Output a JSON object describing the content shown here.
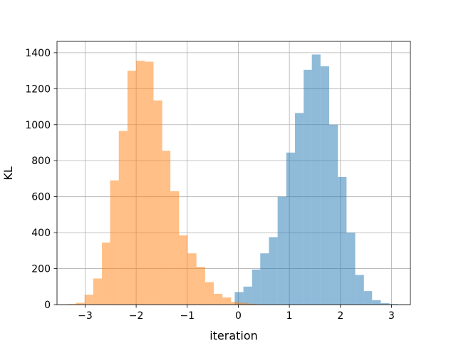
{
  "chart_data": {
    "type": "bar",
    "title": "",
    "xlabel": "iteration",
    "ylabel": "KL",
    "xlim": [
      -3.55,
      3.37
    ],
    "ylim": [
      0,
      1463
    ],
    "xticks": [
      -3,
      -2,
      -1,
      0,
      1,
      2,
      3
    ],
    "xtick_labels": [
      "−3",
      "−2",
      "−1",
      "0",
      "1",
      "2",
      "3"
    ],
    "yticks": [
      0,
      200,
      400,
      600,
      800,
      1000,
      1200,
      1400
    ],
    "ytick_labels": [
      "0",
      "200",
      "400",
      "600",
      "800",
      "1000",
      "1200",
      "1400"
    ],
    "grid": true,
    "legend": "none",
    "series": [
      {
        "color": "#1f77b4",
        "alpha": 0.5,
        "bin_edges": [
          -0.07,
          0.1,
          0.27,
          0.43,
          0.6,
          0.77,
          0.94,
          1.11,
          1.28,
          1.44,
          1.61,
          1.78,
          1.95,
          2.12,
          2.29,
          2.46,
          2.62,
          2.79,
          2.96,
          3.13
        ],
        "counts": [
          70,
          100,
          195,
          285,
          375,
          600,
          845,
          1065,
          1305,
          1390,
          1325,
          1000,
          710,
          400,
          165,
          75,
          25,
          8,
          3
        ]
      },
      {
        "color": "#ff7f0e",
        "alpha": 0.5,
        "bin_edges": [
          -3.35,
          -3.18,
          -3.01,
          -2.84,
          -2.67,
          -2.51,
          -2.34,
          -2.17,
          -2.0,
          -1.83,
          -1.66,
          -1.49,
          -1.33,
          -1.16,
          -0.99,
          -0.82,
          -0.65,
          -0.48,
          -0.31,
          -0.14,
          0.02,
          0.19,
          0.36,
          0.53,
          0.7
        ],
        "counts": [
          3,
          10,
          55,
          145,
          345,
          690,
          965,
          1300,
          1355,
          1350,
          1135,
          855,
          630,
          385,
          285,
          210,
          125,
          60,
          40,
          15,
          10,
          5,
          2,
          1
        ]
      }
    ]
  }
}
